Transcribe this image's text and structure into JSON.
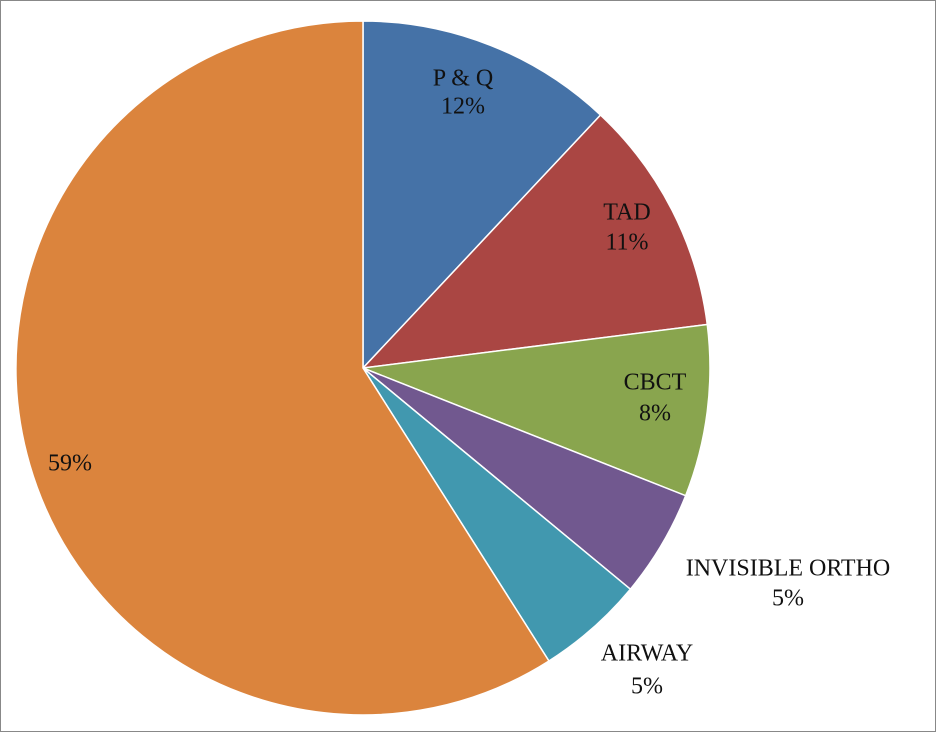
{
  "chart_data": {
    "type": "pie",
    "categories": [
      "P & Q",
      "TAD",
      "CBCT",
      "INVISIBLE ORTHO",
      "AIRWAY",
      null
    ],
    "values": [
      12,
      11,
      8,
      5,
      5,
      59
    ],
    "value_labels": [
      "12%",
      "11%",
      "8%",
      "5%",
      "5%",
      "59%"
    ],
    "colors": [
      "#4572a7",
      "#aa4643",
      "#89a54e",
      "#71588f",
      "#4198af",
      "#db843d"
    ]
  }
}
